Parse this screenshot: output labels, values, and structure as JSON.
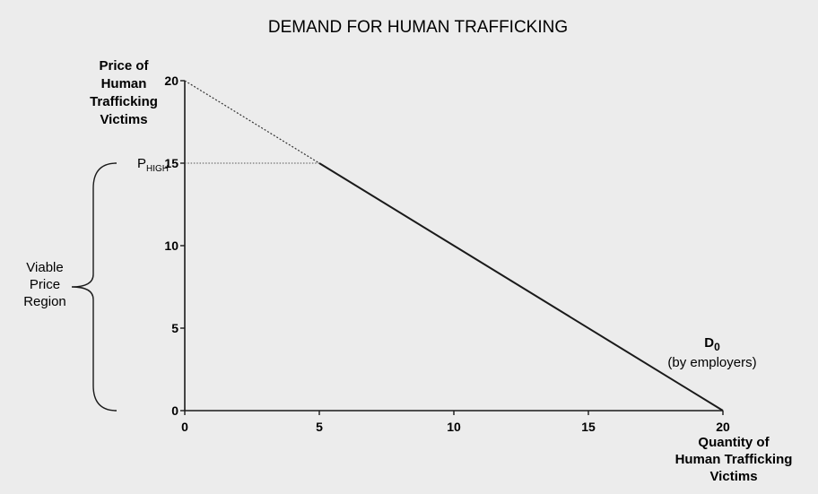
{
  "chart_data": {
    "type": "line",
    "title": "DEMAND FOR HUMAN TRAFFICKING",
    "ylabel": [
      "Price of",
      "Human",
      "Trafficking",
      "Victims"
    ],
    "xlabel": [
      "Quantity of",
      "Human Trafficking",
      "Victims"
    ],
    "xlim": [
      0,
      20
    ],
    "ylim": [
      0,
      20
    ],
    "x_ticks": [
      0,
      5,
      10,
      15,
      20
    ],
    "y_ticks": [
      0,
      5,
      10,
      15,
      20
    ],
    "grid": false,
    "series": [
      {
        "name": "D0",
        "name_main": "D",
        "name_sub": "0",
        "note": "(by employers)",
        "dashed_segment": [
          [
            0,
            20
          ],
          [
            5,
            15
          ]
        ],
        "solid_segment": [
          [
            5,
            15
          ],
          [
            20,
            0
          ]
        ]
      }
    ],
    "annotations": {
      "p_high": {
        "main": "P",
        "sub": "HIGH",
        "value": 15
      },
      "region_label": [
        "Viable",
        "Price",
        "Region"
      ],
      "region_range": [
        0,
        15
      ]
    }
  }
}
